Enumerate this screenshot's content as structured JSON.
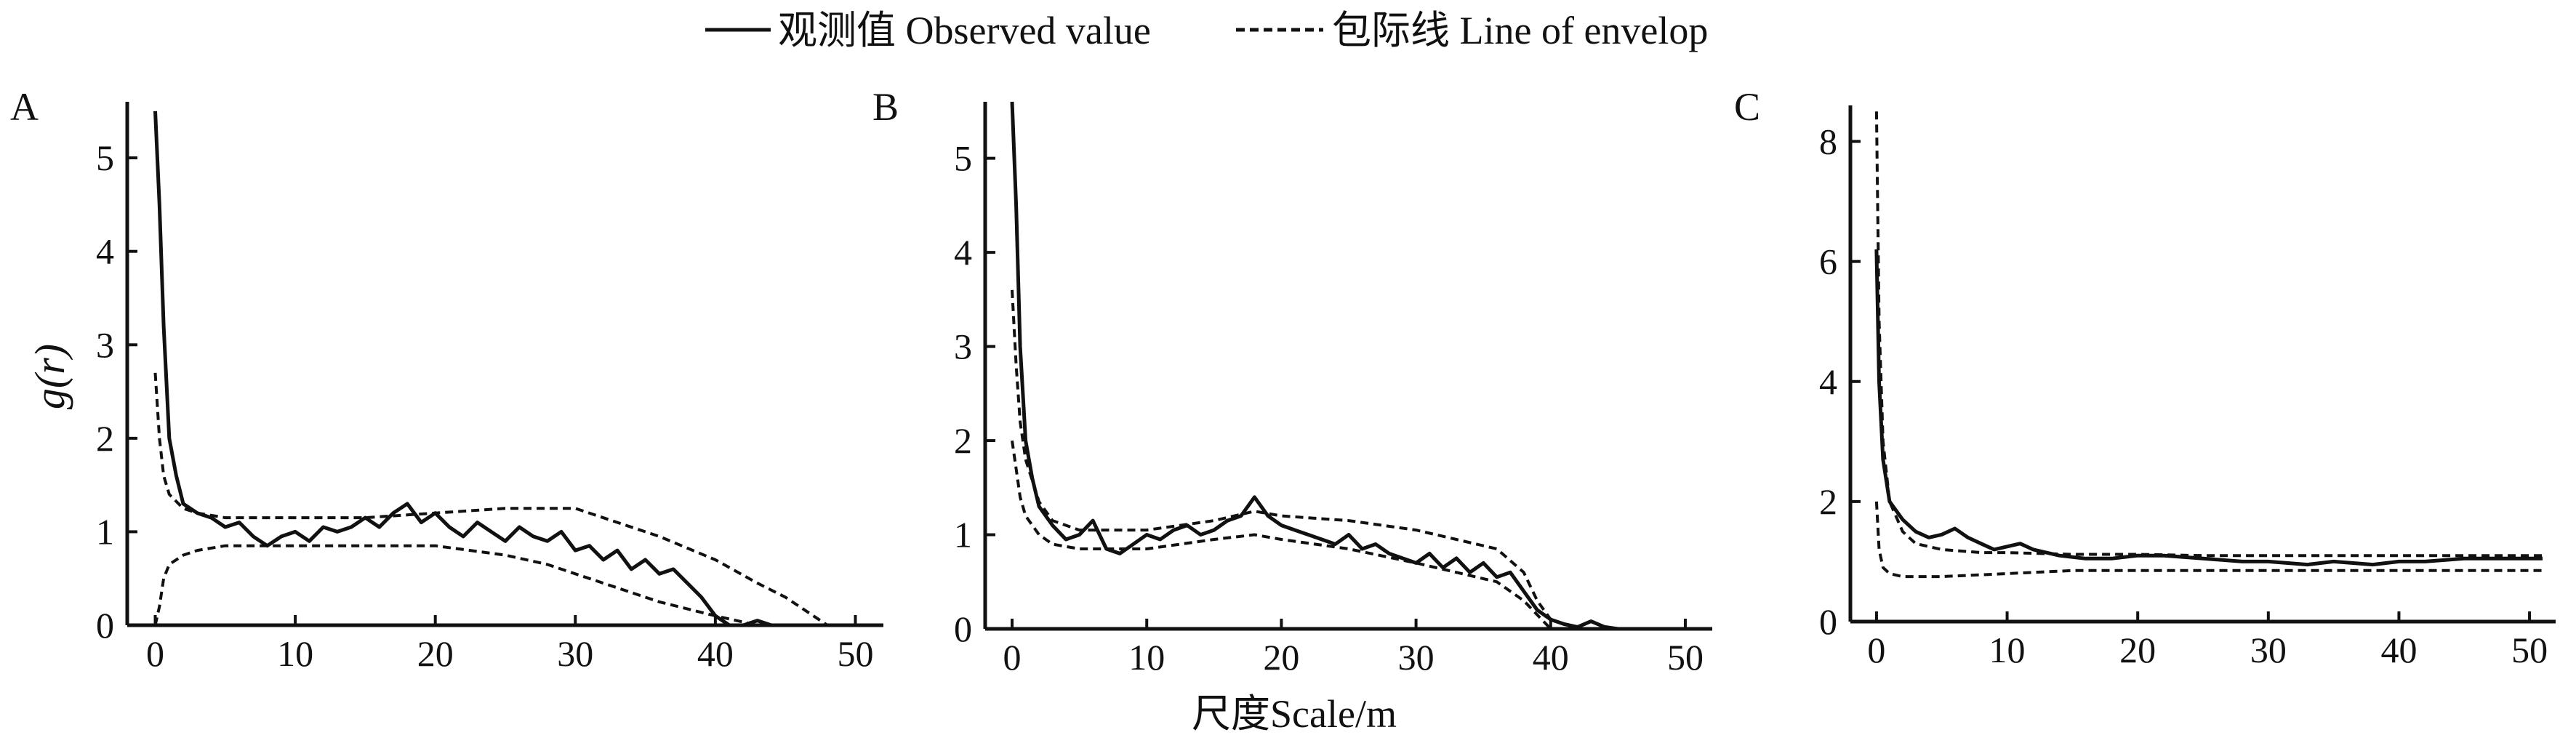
{
  "figure": {
    "legend": [
      {
        "label": "观测值 Observed value",
        "style": "solid"
      },
      {
        "label": "包际线 Line of envelop",
        "style": "dashed"
      }
    ],
    "xlabel": "尺度Scale/m",
    "ylabel": "g(r)",
    "colors": {
      "line": "#111111",
      "background": "#ffffff"
    }
  },
  "chart_data": [
    {
      "type": "line",
      "panel": "A",
      "title": "",
      "xlim": [
        -2,
        52
      ],
      "ylim": [
        0,
        5.6
      ],
      "xticks": [
        0,
        10,
        20,
        30,
        40,
        50
      ],
      "yticks": [
        0,
        1,
        2,
        3,
        4,
        5
      ],
      "grid": false,
      "series": [
        {
          "name": "观测值 Observed value",
          "style": "solid",
          "x": [
            0,
            0.3,
            0.6,
            1,
            1.5,
            2,
            3,
            4,
            5,
            6,
            7,
            8,
            9,
            10,
            11,
            12,
            13,
            14,
            15,
            16,
            17,
            18,
            19,
            20,
            21,
            22,
            23,
            24,
            25,
            26,
            27,
            28,
            29,
            30,
            31,
            32,
            33,
            34,
            35,
            36,
            37,
            38,
            39,
            40,
            41,
            42,
            43,
            44
          ],
          "y": [
            5.5,
            4.5,
            3.2,
            2.0,
            1.6,
            1.3,
            1.2,
            1.15,
            1.05,
            1.1,
            0.95,
            0.85,
            0.95,
            1.0,
            0.9,
            1.05,
            1.0,
            1.05,
            1.15,
            1.05,
            1.2,
            1.3,
            1.1,
            1.2,
            1.05,
            0.95,
            1.1,
            1.0,
            0.9,
            1.05,
            0.95,
            0.9,
            1.0,
            0.8,
            0.85,
            0.7,
            0.8,
            0.6,
            0.7,
            0.55,
            0.6,
            0.45,
            0.3,
            0.1,
            0.0,
            0.0,
            0.05,
            0.0
          ]
        },
        {
          "name": "包际线 Line of envelop",
          "style": "dashed",
          "x": [
            0,
            0.3,
            0.6,
            1,
            2,
            3,
            5,
            8,
            10,
            15,
            20,
            25,
            30,
            33,
            36,
            40,
            43,
            45,
            47,
            48
          ],
          "y": [
            2.7,
            2.0,
            1.6,
            1.4,
            1.25,
            1.2,
            1.15,
            1.15,
            1.15,
            1.15,
            1.2,
            1.25,
            1.25,
            1.1,
            0.95,
            0.7,
            0.45,
            0.3,
            0.1,
            0.0
          ]
        },
        {
          "name": "包际线 Line of envelop",
          "style": "dashed",
          "x": [
            0,
            0.3,
            0.6,
            1,
            2,
            3,
            5,
            10,
            15,
            20,
            25,
            28,
            30,
            33,
            36,
            40,
            43
          ],
          "y": [
            0.0,
            0.2,
            0.5,
            0.65,
            0.75,
            0.8,
            0.85,
            0.85,
            0.85,
            0.85,
            0.75,
            0.65,
            0.55,
            0.4,
            0.25,
            0.1,
            0.0
          ]
        }
      ]
    },
    {
      "type": "line",
      "panel": "B",
      "title": "",
      "xlim": [
        -2,
        52
      ],
      "ylim": [
        0,
        5.6
      ],
      "xticks": [
        0,
        10,
        20,
        30,
        40,
        50
      ],
      "yticks": [
        0,
        1,
        2,
        3,
        4,
        5
      ],
      "grid": false,
      "series": [
        {
          "name": "观测值 Observed value",
          "style": "solid",
          "x": [
            0,
            0.3,
            0.6,
            1,
            1.5,
            2,
            3,
            4,
            5,
            6,
            7,
            8,
            9,
            10,
            11,
            12,
            13,
            14,
            15,
            16,
            17,
            18,
            19,
            20,
            21,
            22,
            23,
            24,
            25,
            26,
            27,
            28,
            29,
            30,
            31,
            32,
            33,
            34,
            35,
            36,
            37,
            38,
            39,
            40,
            41,
            42,
            43,
            44,
            45,
            46,
            47,
            48
          ],
          "y": [
            5.6,
            4.5,
            3.0,
            2.0,
            1.6,
            1.3,
            1.1,
            0.95,
            1.0,
            1.15,
            0.85,
            0.8,
            0.9,
            1.0,
            0.95,
            1.05,
            1.1,
            1.0,
            1.05,
            1.15,
            1.2,
            1.4,
            1.2,
            1.1,
            1.05,
            1.0,
            0.95,
            0.9,
            1.0,
            0.85,
            0.9,
            0.8,
            0.75,
            0.7,
            0.8,
            0.65,
            0.75,
            0.6,
            0.7,
            0.55,
            0.6,
            0.4,
            0.2,
            0.1,
            0.05,
            0.02,
            0.08,
            0.02,
            0.0,
            0.0,
            0.0,
            0.0
          ]
        },
        {
          "name": "包际线 Line of envelop",
          "style": "dashed",
          "x": [
            0,
            0.3,
            0.6,
            1,
            2,
            3,
            5,
            8,
            10,
            15,
            18,
            20,
            25,
            30,
            33,
            36,
            38,
            39,
            40,
            42
          ],
          "y": [
            3.6,
            2.8,
            2.2,
            1.8,
            1.35,
            1.15,
            1.05,
            1.05,
            1.05,
            1.15,
            1.25,
            1.2,
            1.15,
            1.05,
            0.95,
            0.85,
            0.6,
            0.3,
            0.1,
            0.0
          ]
        },
        {
          "name": "包际线 Line of envelop",
          "style": "dashed",
          "x": [
            0,
            0.3,
            0.6,
            1,
            2,
            3,
            5,
            8,
            10,
            15,
            18,
            20,
            25,
            30,
            33,
            36,
            38,
            40
          ],
          "y": [
            2.0,
            1.7,
            1.4,
            1.2,
            1.0,
            0.9,
            0.85,
            0.85,
            0.85,
            0.95,
            1.0,
            0.95,
            0.85,
            0.7,
            0.6,
            0.5,
            0.3,
            0.0
          ]
        }
      ]
    },
    {
      "type": "line",
      "panel": "C",
      "title": "",
      "xlim": [
        -2,
        52
      ],
      "ylim": [
        0,
        8.6
      ],
      "xticks": [
        0,
        10,
        20,
        30,
        40,
        50
      ],
      "yticks": [
        0,
        2,
        4,
        6,
        8
      ],
      "grid": false,
      "series": [
        {
          "name": "观测值 Observed value",
          "style": "solid",
          "x": [
            0,
            0.2,
            0.5,
            1,
            2,
            3,
            4,
            5,
            6,
            7,
            8,
            9,
            10,
            11,
            12,
            14,
            16,
            18,
            20,
            22,
            25,
            28,
            30,
            33,
            35,
            38,
            40,
            42,
            45,
            48,
            51
          ],
          "y": [
            6.2,
            4.0,
            2.7,
            2.0,
            1.7,
            1.5,
            1.4,
            1.45,
            1.55,
            1.4,
            1.3,
            1.2,
            1.25,
            1.3,
            1.2,
            1.1,
            1.05,
            1.05,
            1.1,
            1.1,
            1.05,
            1.0,
            1.0,
            0.95,
            1.0,
            0.95,
            1.0,
            1.0,
            1.05,
            1.05,
            1.05
          ]
        },
        {
          "name": "包际线 Line of envelop",
          "style": "dashed",
          "x": [
            0,
            0.2,
            0.5,
            1,
            2,
            3,
            5,
            8,
            10,
            15,
            20,
            25,
            30,
            35,
            40,
            45,
            51
          ],
          "y": [
            8.5,
            5.0,
            3.0,
            2.0,
            1.5,
            1.3,
            1.2,
            1.15,
            1.15,
            1.12,
            1.12,
            1.1,
            1.1,
            1.1,
            1.1,
            1.1,
            1.1
          ]
        },
        {
          "name": "包际线 Line of envelop",
          "style": "dashed",
          "x": [
            0,
            0.2,
            0.5,
            1,
            2,
            3,
            5,
            10,
            15,
            20,
            30,
            40,
            51
          ],
          "y": [
            2.0,
            1.2,
            0.9,
            0.8,
            0.75,
            0.75,
            0.75,
            0.8,
            0.85,
            0.85,
            0.85,
            0.85,
            0.85
          ]
        }
      ]
    }
  ]
}
